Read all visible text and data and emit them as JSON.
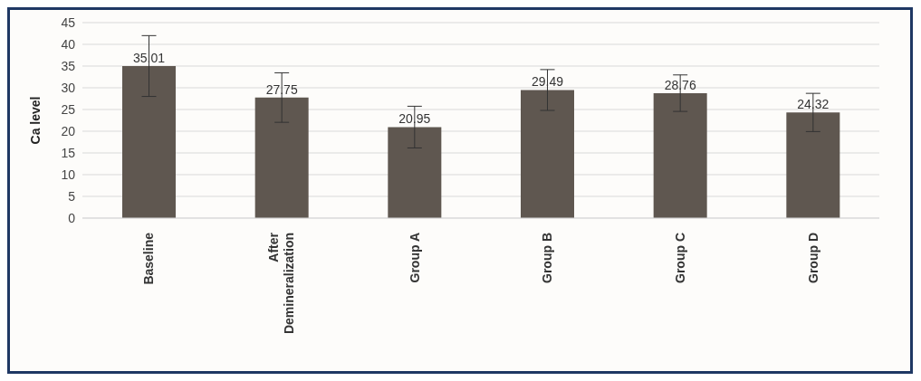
{
  "chart_data": {
    "type": "bar",
    "ylabel": "Ca level",
    "categories": [
      "Baseline",
      "After Demineralization",
      "Group A",
      "Group B",
      "Group C",
      "Group D"
    ],
    "values": [
      35.01,
      27.75,
      20.95,
      29.49,
      28.76,
      24.32
    ],
    "errors": [
      7,
      5.7,
      4.8,
      4.7,
      4.2,
      4.4
    ],
    "color": "#5f5750",
    "ylim": [
      0,
      45
    ],
    "yticks": [
      0,
      5,
      10,
      15,
      20,
      25,
      30,
      35,
      40,
      45
    ],
    "grid": "y",
    "legend": false,
    "data_labels": true
  }
}
